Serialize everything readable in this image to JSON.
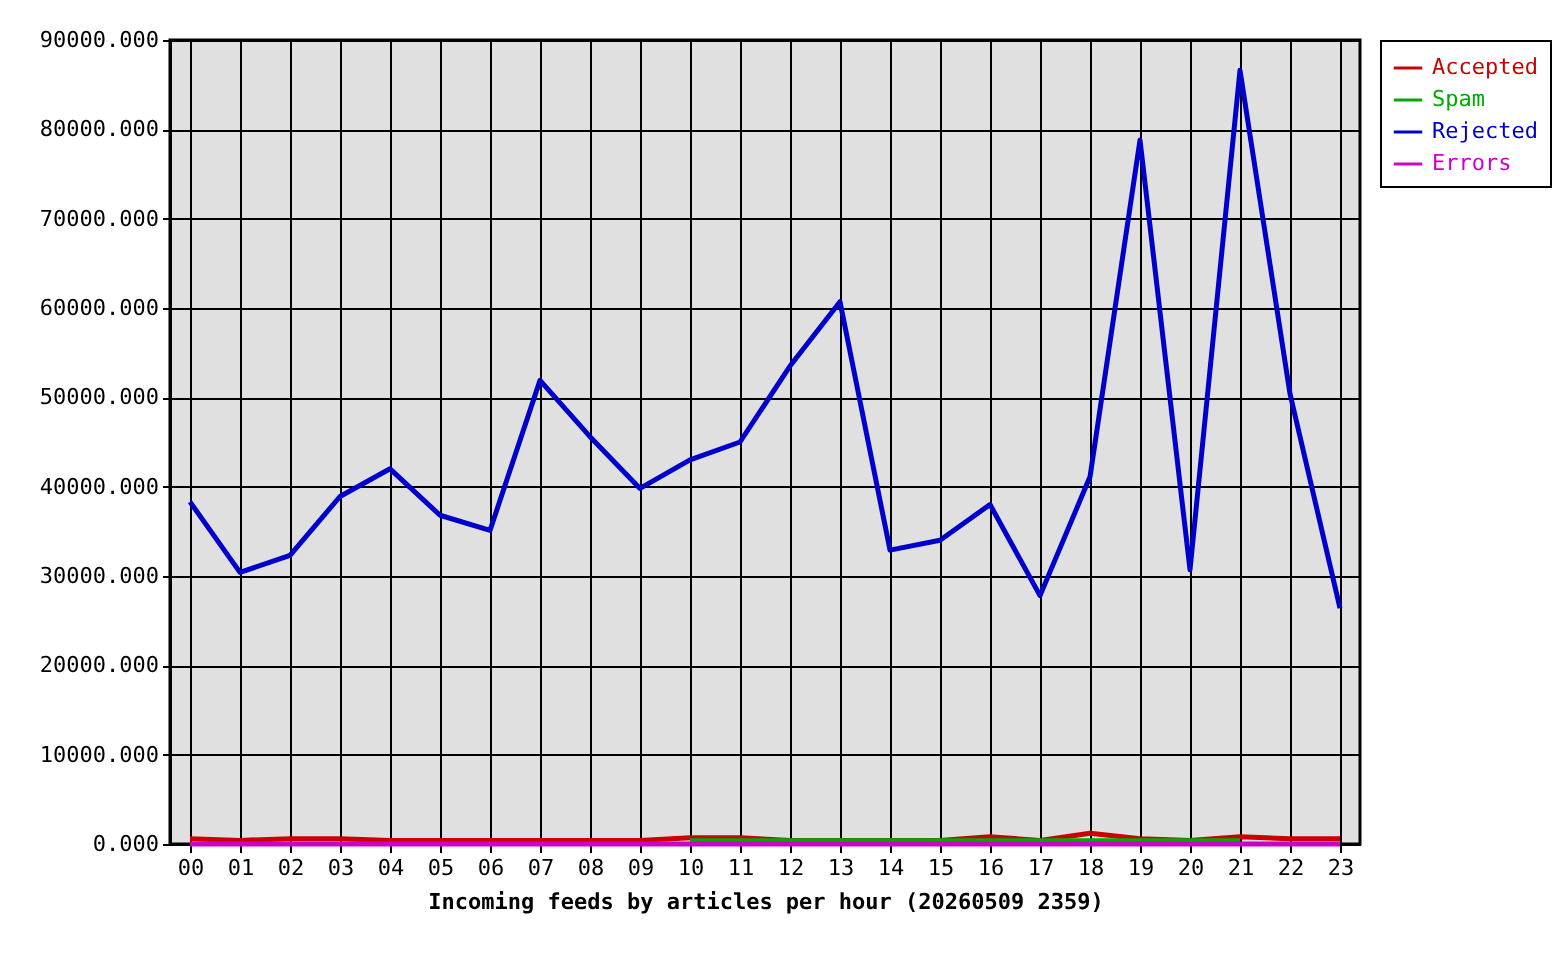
{
  "chart_data": {
    "type": "line",
    "xlabel": "Incoming feeds by articles per hour (20260509 2359)",
    "categories": [
      "00",
      "01",
      "02",
      "03",
      "04",
      "05",
      "06",
      "07",
      "08",
      "09",
      "10",
      "11",
      "12",
      "13",
      "14",
      "15",
      "16",
      "17",
      "18",
      "19",
      "20",
      "21",
      "22",
      "23"
    ],
    "series": [
      {
        "name": "Accepted",
        "color": "#cc0000",
        "values": [
          600,
          400,
          600,
          600,
          400,
          400,
          400,
          400,
          400,
          400,
          700,
          700,
          400,
          400,
          400,
          400,
          800,
          400,
          1200,
          600,
          400,
          800,
          600,
          600
        ]
      },
      {
        "name": "Spam",
        "color": "#00aa00",
        "values": [
          null,
          null,
          null,
          null,
          null,
          null,
          null,
          null,
          null,
          null,
          350,
          350,
          350,
          350,
          null,
          null,
          null,
          null,
          null,
          null,
          350,
          350,
          null,
          null
        ]
      },
      {
        "name": "Rejected",
        "color": "#0000cc",
        "values": [
          38300,
          30400,
          32300,
          38900,
          42000,
          36800,
          35100,
          51900,
          45600,
          39800,
          43000,
          45000,
          53500,
          60700,
          32900,
          34000,
          38000,
          27800,
          41100,
          78800,
          30700,
          86600,
          50400,
          26400
        ]
      },
      {
        "name": "Errors",
        "color": "#cc00cc",
        "values": [
          0,
          0,
          0,
          0,
          0,
          0,
          0,
          0,
          0,
          0,
          0,
          0,
          0,
          0,
          0,
          0,
          0,
          0,
          0,
          0,
          0,
          0,
          0,
          0
        ]
      }
    ],
    "ylim": [
      0,
      90000
    ],
    "yticks": [
      {
        "value": 0,
        "label": "0.000"
      },
      {
        "value": 10000,
        "label": "10000.000"
      },
      {
        "value": 20000,
        "label": "20000.000"
      },
      {
        "value": 30000,
        "label": "30000.000"
      },
      {
        "value": 40000,
        "label": "40000.000"
      },
      {
        "value": 50000,
        "label": "50000.000"
      },
      {
        "value": 60000,
        "label": "60000.000"
      },
      {
        "value": 70000,
        "label": "70000.000"
      },
      {
        "value": 80000,
        "label": "80000.000"
      },
      {
        "value": 90000,
        "label": "90000.000"
      }
    ],
    "grid": true,
    "legend": "top right"
  }
}
